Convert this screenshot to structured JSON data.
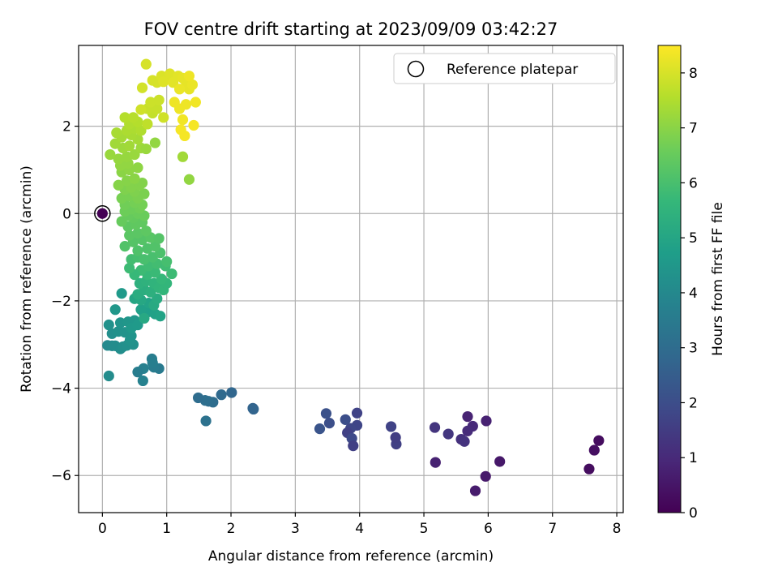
{
  "chart_data": {
    "type": "scatter",
    "title": "FOV centre drift starting at 2023/09/09 03:42:27",
    "xlabel": "Angular distance from reference (arcmin)",
    "ylabel": "Rotation from reference (arcmin)",
    "xlim": [
      -0.37,
      8.1
    ],
    "ylim": [
      -6.85,
      3.85
    ],
    "x_ticks": [
      "0",
      "1",
      "2",
      "3",
      "4",
      "5",
      "6",
      "7",
      "8"
    ],
    "y_ticks": [
      "−6",
      "−4",
      "−2",
      "0",
      "2"
    ],
    "grid": true,
    "legend": {
      "placement": "top-right",
      "entries": [
        "Reference platepar"
      ]
    },
    "colorbar": {
      "label": "Hours from first FF file",
      "range": [
        0,
        8.5
      ],
      "ticks": [
        "0",
        "1",
        "2",
        "3",
        "4",
        "5",
        "6",
        "7",
        "8"
      ],
      "colormap": "viridis"
    },
    "reference_point": {
      "x": 0,
      "y": 0
    },
    "points": [
      {
        "x": 7.72,
        "y": -5.2,
        "h": 0.3
      },
      {
        "x": 7.65,
        "y": -5.42,
        "h": 0.35
      },
      {
        "x": 7.57,
        "y": -5.85,
        "h": 0.3
      },
      {
        "x": 6.18,
        "y": -5.68,
        "h": 0.55
      },
      {
        "x": 5.96,
        "y": -6.02,
        "h": 0.6
      },
      {
        "x": 5.8,
        "y": -6.35,
        "h": 0.65
      },
      {
        "x": 5.97,
        "y": -4.75,
        "h": 0.8
      },
      {
        "x": 5.68,
        "y": -4.65,
        "h": 0.85
      },
      {
        "x": 5.76,
        "y": -4.87,
        "h": 1.0
      },
      {
        "x": 5.68,
        "y": -4.98,
        "h": 1.05
      },
      {
        "x": 5.58,
        "y": -5.17,
        "h": 1.2
      },
      {
        "x": 5.63,
        "y": -5.22,
        "h": 1.25
      },
      {
        "x": 5.18,
        "y": -5.7,
        "h": 0.8
      },
      {
        "x": 5.17,
        "y": -4.9,
        "h": 1.3
      },
      {
        "x": 5.38,
        "y": -5.05,
        "h": 1.35
      },
      {
        "x": 4.57,
        "y": -5.28,
        "h": 1.6
      },
      {
        "x": 4.56,
        "y": -5.13,
        "h": 1.55
      },
      {
        "x": 4.49,
        "y": -4.88,
        "h": 1.7
      },
      {
        "x": 3.96,
        "y": -4.57,
        "h": 1.7
      },
      {
        "x": 3.96,
        "y": -4.85,
        "h": 1.75
      },
      {
        "x": 3.86,
        "y": -4.92,
        "h": 1.8
      },
      {
        "x": 3.81,
        "y": -5.02,
        "h": 1.65
      },
      {
        "x": 3.88,
        "y": -5.15,
        "h": 1.9
      },
      {
        "x": 3.9,
        "y": -5.32,
        "h": 1.6
      },
      {
        "x": 3.78,
        "y": -4.72,
        "h": 2.0
      },
      {
        "x": 3.48,
        "y": -4.58,
        "h": 2.1
      },
      {
        "x": 3.53,
        "y": -4.8,
        "h": 2.05
      },
      {
        "x": 3.38,
        "y": -4.93,
        "h": 2.2
      },
      {
        "x": 2.34,
        "y": -4.46,
        "h": 2.7
      },
      {
        "x": 2.35,
        "y": -4.48,
        "h": 2.75
      },
      {
        "x": 2.01,
        "y": -4.1,
        "h": 2.8
      },
      {
        "x": 1.85,
        "y": -4.15,
        "h": 2.9
      },
      {
        "x": 1.72,
        "y": -4.32,
        "h": 3.0
      },
      {
        "x": 1.65,
        "y": -4.3,
        "h": 3.05
      },
      {
        "x": 1.6,
        "y": -4.28,
        "h": 3.1
      },
      {
        "x": 1.49,
        "y": -4.22,
        "h": 3.0
      },
      {
        "x": 1.61,
        "y": -4.75,
        "h": 3.2
      },
      {
        "x": 0.88,
        "y": -3.55,
        "h": 3.5
      },
      {
        "x": 0.77,
        "y": -3.33,
        "h": 3.6
      },
      {
        "x": 0.8,
        "y": -3.52,
        "h": 3.55
      },
      {
        "x": 0.64,
        "y": -3.55,
        "h": 3.7
      },
      {
        "x": 0.55,
        "y": -3.63,
        "h": 3.6
      },
      {
        "x": 0.63,
        "y": -3.83,
        "h": 3.75
      },
      {
        "x": 0.78,
        "y": -3.42,
        "h": 3.65
      },
      {
        "x": 0.1,
        "y": -3.72,
        "h": 4.1
      },
      {
        "x": 0.08,
        "y": -3.02,
        "h": 4.0
      },
      {
        "x": 0.15,
        "y": -3.03,
        "h": 4.05
      },
      {
        "x": 0.2,
        "y": -3.03,
        "h": 4.1
      },
      {
        "x": 0.28,
        "y": -3.1,
        "h": 4.15
      },
      {
        "x": 0.32,
        "y": -3.05,
        "h": 4.2
      },
      {
        "x": 0.38,
        "y": -3.02,
        "h": 4.25
      },
      {
        "x": 0.48,
        "y": -3.0,
        "h": 4.3
      },
      {
        "x": 0.43,
        "y": -2.9,
        "h": 4.35
      },
      {
        "x": 0.15,
        "y": -2.75,
        "h": 4.2
      },
      {
        "x": 0.25,
        "y": -2.7,
        "h": 4.3
      },
      {
        "x": 0.35,
        "y": -2.72,
        "h": 4.35
      },
      {
        "x": 0.45,
        "y": -2.8,
        "h": 4.4
      },
      {
        "x": 0.1,
        "y": -2.55,
        "h": 4.3
      },
      {
        "x": 0.28,
        "y": -2.5,
        "h": 4.4
      },
      {
        "x": 0.4,
        "y": -2.48,
        "h": 4.45
      },
      {
        "x": 0.5,
        "y": -2.45,
        "h": 4.5
      },
      {
        "x": 0.45,
        "y": -2.62,
        "h": 4.55
      },
      {
        "x": 0.2,
        "y": -2.2,
        "h": 4.5
      },
      {
        "x": 0.55,
        "y": -2.55,
        "h": 4.6
      },
      {
        "x": 0.3,
        "y": -1.83,
        "h": 4.6
      },
      {
        "x": 0.65,
        "y": -2.3,
        "h": 4.7
      },
      {
        "x": 0.72,
        "y": -2.25,
        "h": 4.75
      },
      {
        "x": 0.6,
        "y": -2.2,
        "h": 4.8
      },
      {
        "x": 0.82,
        "y": -2.3,
        "h": 4.85
      },
      {
        "x": 0.9,
        "y": -2.35,
        "h": 4.9
      },
      {
        "x": 0.72,
        "y": -2.05,
        "h": 4.9
      },
      {
        "x": 0.5,
        "y": -1.95,
        "h": 5.0
      },
      {
        "x": 0.6,
        "y": -1.98,
        "h": 5.05
      },
      {
        "x": 0.65,
        "y": -2.4,
        "h": 5.1
      },
      {
        "x": 0.8,
        "y": -2.1,
        "h": 5.15
      },
      {
        "x": 0.85,
        "y": -1.95,
        "h": 5.2
      },
      {
        "x": 0.55,
        "y": -1.85,
        "h": 5.25
      },
      {
        "x": 0.65,
        "y": -1.75,
        "h": 5.3
      },
      {
        "x": 0.75,
        "y": -1.8,
        "h": 5.35
      },
      {
        "x": 0.58,
        "y": -1.6,
        "h": 5.4
      },
      {
        "x": 0.68,
        "y": -1.55,
        "h": 5.45
      },
      {
        "x": 0.8,
        "y": -1.6,
        "h": 5.5
      },
      {
        "x": 0.88,
        "y": -1.7,
        "h": 5.55
      },
      {
        "x": 0.95,
        "y": -1.75,
        "h": 5.6
      },
      {
        "x": 1.0,
        "y": -1.6,
        "h": 5.6
      },
      {
        "x": 0.92,
        "y": -1.5,
        "h": 5.65
      },
      {
        "x": 0.7,
        "y": -1.4,
        "h": 5.7
      },
      {
        "x": 0.82,
        "y": -1.35,
        "h": 5.75
      },
      {
        "x": 0.6,
        "y": -1.3,
        "h": 5.8
      },
      {
        "x": 0.5,
        "y": -1.4,
        "h": 5.7
      },
      {
        "x": 0.42,
        "y": -1.25,
        "h": 5.8
      },
      {
        "x": 0.72,
        "y": -1.2,
        "h": 5.85
      },
      {
        "x": 0.85,
        "y": -1.15,
        "h": 5.9
      },
      {
        "x": 0.98,
        "y": -1.2,
        "h": 5.85
      },
      {
        "x": 1.08,
        "y": -1.38,
        "h": 5.8
      },
      {
        "x": 1.0,
        "y": -1.1,
        "h": 5.95
      },
      {
        "x": 0.45,
        "y": -1.05,
        "h": 5.9
      },
      {
        "x": 0.55,
        "y": -1.0,
        "h": 5.95
      },
      {
        "x": 0.65,
        "y": -1.05,
        "h": 6.0
      },
      {
        "x": 0.78,
        "y": -1.0,
        "h": 6.0
      },
      {
        "x": 0.9,
        "y": -0.9,
        "h": 6.05
      },
      {
        "x": 0.55,
        "y": -0.85,
        "h": 6.1
      },
      {
        "x": 0.7,
        "y": -0.8,
        "h": 6.1
      },
      {
        "x": 0.82,
        "y": -0.75,
        "h": 6.15
      },
      {
        "x": 0.35,
        "y": -0.75,
        "h": 6.15
      },
      {
        "x": 0.48,
        "y": -0.65,
        "h": 6.2
      },
      {
        "x": 0.62,
        "y": -0.6,
        "h": 6.2
      },
      {
        "x": 0.75,
        "y": -0.55,
        "h": 6.25
      },
      {
        "x": 0.88,
        "y": -0.57,
        "h": 6.2
      },
      {
        "x": 0.42,
        "y": -0.5,
        "h": 6.3
      },
      {
        "x": 0.55,
        "y": -0.45,
        "h": 6.3
      },
      {
        "x": 0.68,
        "y": -0.4,
        "h": 6.35
      },
      {
        "x": 0.4,
        "y": -0.3,
        "h": 6.35
      },
      {
        "x": 0.52,
        "y": -0.25,
        "h": 6.4
      },
      {
        "x": 0.62,
        "y": -0.2,
        "h": 6.4
      },
      {
        "x": 0.48,
        "y": -0.1,
        "h": 6.45
      },
      {
        "x": 0.3,
        "y": -0.18,
        "h": 6.5
      },
      {
        "x": 0.4,
        "y": -0.05,
        "h": 6.5
      },
      {
        "x": 0.55,
        "y": 0.0,
        "h": 6.55
      },
      {
        "x": 0.65,
        "y": -0.05,
        "h": 6.55
      },
      {
        "x": 0.35,
        "y": 0.05,
        "h": 6.6
      },
      {
        "x": 0.45,
        "y": 0.1,
        "h": 6.6
      },
      {
        "x": 0.58,
        "y": 0.12,
        "h": 6.65
      },
      {
        "x": 0.35,
        "y": 0.2,
        "h": 6.65
      },
      {
        "x": 0.5,
        "y": 0.25,
        "h": 6.7
      },
      {
        "x": 0.62,
        "y": 0.2,
        "h": 6.7
      },
      {
        "x": 0.3,
        "y": 0.35,
        "h": 6.75
      },
      {
        "x": 0.42,
        "y": 0.4,
        "h": 6.75
      },
      {
        "x": 0.55,
        "y": 0.35,
        "h": 6.8
      },
      {
        "x": 0.65,
        "y": 0.45,
        "h": 6.8
      },
      {
        "x": 0.5,
        "y": 0.5,
        "h": 6.85
      },
      {
        "x": 0.35,
        "y": 0.55,
        "h": 6.85
      },
      {
        "x": 0.45,
        "y": 0.6,
        "h": 6.9
      },
      {
        "x": 0.58,
        "y": 0.65,
        "h": 6.9
      },
      {
        "x": 0.62,
        "y": 0.7,
        "h": 6.9
      },
      {
        "x": 0.25,
        "y": 0.65,
        "h": 6.95
      },
      {
        "x": 0.38,
        "y": 0.75,
        "h": 6.95
      },
      {
        "x": 0.5,
        "y": 0.8,
        "h": 7.0
      },
      {
        "x": 0.3,
        "y": 0.95,
        "h": 7.0
      },
      {
        "x": 0.42,
        "y": 1.0,
        "h": 7.05
      },
      {
        "x": 0.55,
        "y": 1.05,
        "h": 7.05
      },
      {
        "x": 0.28,
        "y": 1.1,
        "h": 7.1
      },
      {
        "x": 0.4,
        "y": 1.15,
        "h": 7.1
      },
      {
        "x": 0.25,
        "y": 1.25,
        "h": 7.15
      },
      {
        "x": 0.38,
        "y": 1.3,
        "h": 7.15
      },
      {
        "x": 0.5,
        "y": 1.35,
        "h": 7.2
      },
      {
        "x": 0.12,
        "y": 1.35,
        "h": 7.2
      },
      {
        "x": 0.6,
        "y": 1.5,
        "h": 7.25
      },
      {
        "x": 0.68,
        "y": 1.48,
        "h": 7.2
      },
      {
        "x": 0.82,
        "y": 1.62,
        "h": 7.1
      },
      {
        "x": 0.32,
        "y": 1.5,
        "h": 7.25
      },
      {
        "x": 0.2,
        "y": 1.6,
        "h": 7.3
      },
      {
        "x": 0.42,
        "y": 1.55,
        "h": 7.3
      },
      {
        "x": 0.55,
        "y": 1.7,
        "h": 7.35
      },
      {
        "x": 0.3,
        "y": 1.75,
        "h": 7.35
      },
      {
        "x": 0.45,
        "y": 1.8,
        "h": 7.4
      },
      {
        "x": 0.22,
        "y": 1.85,
        "h": 7.4
      },
      {
        "x": 0.38,
        "y": 1.9,
        "h": 7.45
      },
      {
        "x": 0.5,
        "y": 1.95,
        "h": 7.45
      },
      {
        "x": 0.6,
        "y": 1.9,
        "h": 7.5
      },
      {
        "x": 0.42,
        "y": 2.05,
        "h": 7.5
      },
      {
        "x": 0.55,
        "y": 2.1,
        "h": 7.55
      },
      {
        "x": 0.35,
        "y": 2.2,
        "h": 7.55
      },
      {
        "x": 0.48,
        "y": 2.2,
        "h": 7.6
      },
      {
        "x": 1.25,
        "y": 1.3,
        "h": 7.3
      },
      {
        "x": 1.35,
        "y": 0.78,
        "h": 7.1
      },
      {
        "x": 0.7,
        "y": 2.05,
        "h": 7.7
      },
      {
        "x": 0.78,
        "y": 2.3,
        "h": 7.75
      },
      {
        "x": 0.85,
        "y": 2.4,
        "h": 7.8
      },
      {
        "x": 0.7,
        "y": 2.4,
        "h": 7.8
      },
      {
        "x": 0.75,
        "y": 2.55,
        "h": 7.85
      },
      {
        "x": 0.88,
        "y": 2.6,
        "h": 7.85
      },
      {
        "x": 0.6,
        "y": 2.38,
        "h": 7.9
      },
      {
        "x": 0.95,
        "y": 2.2,
        "h": 7.9
      },
      {
        "x": 0.62,
        "y": 2.88,
        "h": 7.95
      },
      {
        "x": 0.78,
        "y": 3.05,
        "h": 8.0
      },
      {
        "x": 0.85,
        "y": 3.0,
        "h": 8.0
      },
      {
        "x": 0.92,
        "y": 3.15,
        "h": 8.05
      },
      {
        "x": 1.0,
        "y": 3.1,
        "h": 8.05
      },
      {
        "x": 1.05,
        "y": 3.2,
        "h": 8.1
      },
      {
        "x": 0.95,
        "y": 3.02,
        "h": 8.1
      },
      {
        "x": 1.1,
        "y": 3.0,
        "h": 8.15
      },
      {
        "x": 1.18,
        "y": 3.15,
        "h": 8.15
      },
      {
        "x": 1.25,
        "y": 3.1,
        "h": 8.2
      },
      {
        "x": 1.3,
        "y": 3.02,
        "h": 8.2
      },
      {
        "x": 1.35,
        "y": 2.85,
        "h": 8.2
      },
      {
        "x": 1.4,
        "y": 2.95,
        "h": 8.25
      },
      {
        "x": 1.2,
        "y": 2.85,
        "h": 8.25
      },
      {
        "x": 1.12,
        "y": 2.55,
        "h": 8.3
      },
      {
        "x": 1.3,
        "y": 2.5,
        "h": 8.3
      },
      {
        "x": 1.2,
        "y": 2.4,
        "h": 8.3
      },
      {
        "x": 1.45,
        "y": 2.55,
        "h": 8.35
      },
      {
        "x": 1.25,
        "y": 2.15,
        "h": 8.35
      },
      {
        "x": 1.42,
        "y": 2.02,
        "h": 8.4
      },
      {
        "x": 1.22,
        "y": 1.92,
        "h": 8.4
      },
      {
        "x": 1.28,
        "y": 1.78,
        "h": 8.4
      },
      {
        "x": 0.68,
        "y": 3.42,
        "h": 8.0
      },
      {
        "x": 1.35,
        "y": 3.15,
        "h": 8.3
      }
    ]
  }
}
